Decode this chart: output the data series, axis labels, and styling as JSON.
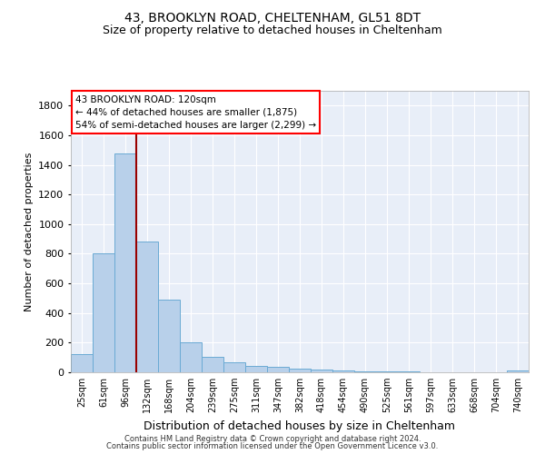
{
  "title1": "43, BROOKLYN ROAD, CHELTENHAM, GL51 8DT",
  "title2": "Size of property relative to detached houses in Cheltenham",
  "xlabel": "Distribution of detached houses by size in Cheltenham",
  "ylabel": "Number of detached properties",
  "footnote1": "Contains HM Land Registry data © Crown copyright and database right 2024.",
  "footnote2": "Contains public sector information licensed under the Open Government Licence v3.0.",
  "bar_labels": [
    "25sqm",
    "61sqm",
    "96sqm",
    "132sqm",
    "168sqm",
    "204sqm",
    "239sqm",
    "275sqm",
    "311sqm",
    "347sqm",
    "382sqm",
    "418sqm",
    "454sqm",
    "490sqm",
    "525sqm",
    "561sqm",
    "597sqm",
    "633sqm",
    "668sqm",
    "704sqm",
    "740sqm"
  ],
  "bar_values": [
    120,
    800,
    1475,
    880,
    490,
    205,
    105,
    65,
    40,
    35,
    25,
    20,
    15,
    5,
    5,
    5,
    3,
    2,
    2,
    2,
    15
  ],
  "bar_color": "#b8d0ea",
  "bar_edgecolor": "#6aaad4",
  "vline_x": 2.5,
  "vline_color": "#990000",
  "annotation_title": "43 BROOKLYN ROAD: 120sqm",
  "annotation_line1": "← 44% of detached houses are smaller (1,875)",
  "annotation_line2": "54% of semi-detached houses are larger (2,299) →",
  "annotation_box_color": "red",
  "ylim": [
    0,
    1900
  ],
  "yticks": [
    0,
    200,
    400,
    600,
    800,
    1000,
    1200,
    1400,
    1600,
    1800
  ],
  "background_color": "#e8eef8",
  "grid_color": "#ffffff"
}
